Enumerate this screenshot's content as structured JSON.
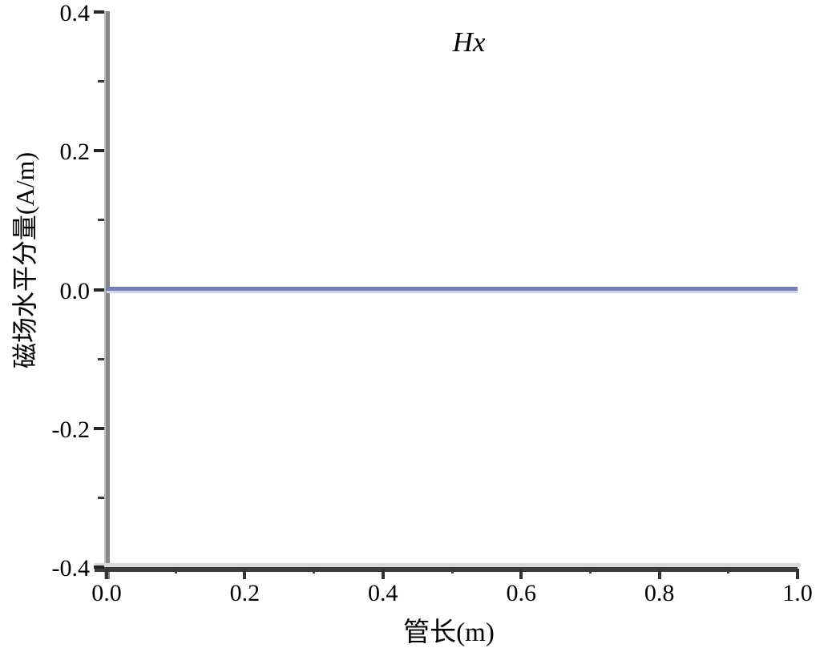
{
  "chart_data": {
    "type": "line",
    "title": "Hx",
    "xlabel": "管长(m)",
    "ylabel": "磁场水平分量(A/m)",
    "xlim": [
      0.0,
      1.0
    ],
    "ylim": [
      -0.4,
      0.4
    ],
    "x_ticks": [
      0.0,
      0.2,
      0.4,
      0.6,
      0.8,
      1.0
    ],
    "x_tick_labels": [
      "0.0",
      "0.2",
      "0.4",
      "0.6",
      "0.8",
      "1.0"
    ],
    "y_ticks": [
      0.4,
      0.2,
      0.0,
      -0.2,
      -0.4
    ],
    "y_tick_labels": [
      "0.4",
      "0.2",
      "0.0",
      "-0.2",
      "-0.4"
    ],
    "x_minor_ticks": [
      0.1,
      0.3,
      0.5,
      0.7,
      0.9
    ],
    "y_minor_ticks": [
      0.3,
      0.1,
      -0.1,
      -0.3
    ],
    "grid": false,
    "legend_position": "none",
    "series": [
      {
        "name": "Hx",
        "color": "#767eb5",
        "highlight_color": "#ccd7ee",
        "x": [
          0.0,
          1.0
        ],
        "y": [
          0.0,
          0.0
        ]
      }
    ]
  },
  "style": {
    "background": "#ffffff",
    "y_axis_color": "#878787",
    "y_axis_highlight": "#bdbdbd",
    "x_axis_color": "#3d3d3d",
    "x_axis_highlight": "#d9d9d9",
    "tick_color": "#262626",
    "text_color": "#000000"
  }
}
